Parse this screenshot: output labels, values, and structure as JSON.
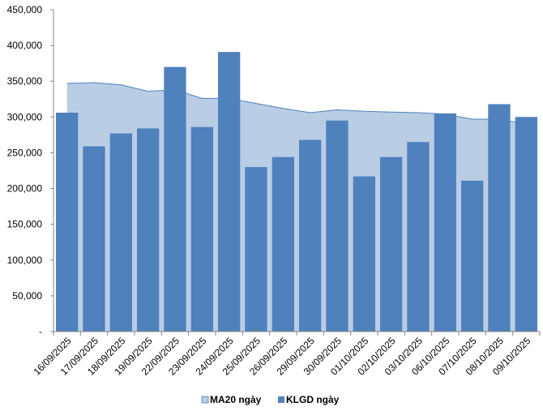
{
  "chart_data": {
    "type": "bar",
    "categories": [
      "16/09/2025",
      "17/09/2025",
      "18/09/2025",
      "19/09/2025",
      "22/09/2025",
      "23/09/2025",
      "24/09/2025",
      "25/09/2025",
      "26/09/2025",
      "29/09/2025",
      "30/09/2025",
      "01/10/2025",
      "02/10/2025",
      "03/10/2025",
      "06/10/2025",
      "07/10/2025",
      "08/10/2025",
      "09/10/2025"
    ],
    "series": [
      {
        "name": "MA20 ngày",
        "kind": "area",
        "color": "#b9cde5",
        "line_color": "#4f81bd",
        "values": [
          347000,
          348000,
          345000,
          336000,
          338000,
          326000,
          326000,
          319000,
          312000,
          306000,
          310000,
          308000,
          307000,
          306000,
          304000,
          297000,
          297000,
          290000
        ]
      },
      {
        "name": "KLGD ngày",
        "kind": "bar",
        "color": "#4f81bd",
        "values": [
          306000,
          259000,
          277000,
          284000,
          370000,
          286000,
          391000,
          230000,
          244000,
          268000,
          295000,
          217000,
          244000,
          265000,
          305000,
          211000,
          318000,
          300000
        ]
      }
    ],
    "ylim": [
      0,
      450000
    ],
    "y_ticks": [
      {
        "value": 0,
        "label": "-"
      },
      {
        "value": 50000,
        "label": "50,000"
      },
      {
        "value": 100000,
        "label": "100,000"
      },
      {
        "value": 150000,
        "label": "150,000"
      },
      {
        "value": 200000,
        "label": "200,000"
      },
      {
        "value": 250000,
        "label": "250,000"
      },
      {
        "value": 300000,
        "label": "300,000"
      },
      {
        "value": 350000,
        "label": "350,000"
      },
      {
        "value": 400000,
        "label": "400,000"
      },
      {
        "value": 450000,
        "label": "450,000"
      }
    ],
    "grid": false,
    "legend_position": "bottom",
    "title": "",
    "xlabel": "",
    "ylabel": ""
  }
}
